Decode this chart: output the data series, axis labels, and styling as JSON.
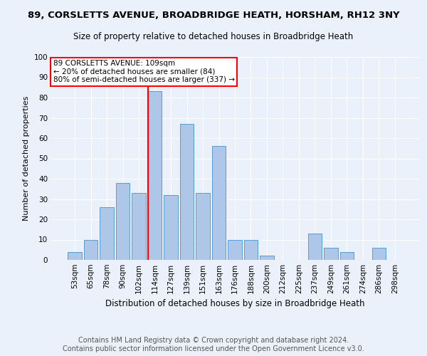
{
  "title1": "89, CORSLETTS AVENUE, BROADBRIDGE HEATH, HORSHAM, RH12 3NY",
  "title2": "Size of property relative to detached houses in Broadbridge Heath",
  "xlabel": "Distribution of detached houses by size in Broadbridge Heath",
  "ylabel": "Number of detached properties",
  "footnote1": "Contains HM Land Registry data © Crown copyright and database right 2024.",
  "footnote2": "Contains public sector information licensed under the Open Government Licence v3.0.",
  "categories": [
    "53sqm",
    "65sqm",
    "78sqm",
    "90sqm",
    "102sqm",
    "114sqm",
    "127sqm",
    "139sqm",
    "151sqm",
    "163sqm",
    "176sqm",
    "188sqm",
    "200sqm",
    "212sqm",
    "225sqm",
    "237sqm",
    "249sqm",
    "261sqm",
    "274sqm",
    "286sqm",
    "298sqm"
  ],
  "values": [
    4,
    10,
    26,
    38,
    33,
    83,
    32,
    67,
    33,
    56,
    10,
    10,
    2,
    0,
    0,
    13,
    6,
    4,
    0,
    6,
    0
  ],
  "bar_color": "#aec6e8",
  "bar_edge_color": "#5b9bd5",
  "vline_index": 5,
  "annotation_text": "89 CORSLETTS AVENUE: 109sqm\n← 20% of detached houses are smaller (84)\n80% of semi-detached houses are larger (337) →",
  "annotation_box_color": "white",
  "annotation_box_edge": "red",
  "vline_color": "red",
  "ylim": [
    0,
    100
  ],
  "yticks": [
    0,
    10,
    20,
    30,
    40,
    50,
    60,
    70,
    80,
    90,
    100
  ],
  "bg_color": "#eaf1fb",
  "grid_color": "white",
  "title1_fontsize": 9.5,
  "title2_fontsize": 8.5,
  "xlabel_fontsize": 8.5,
  "ylabel_fontsize": 8,
  "tick_fontsize": 7.5,
  "ytick_fontsize": 7.5,
  "footnote_fontsize": 7,
  "annotation_fontsize": 7.5
}
